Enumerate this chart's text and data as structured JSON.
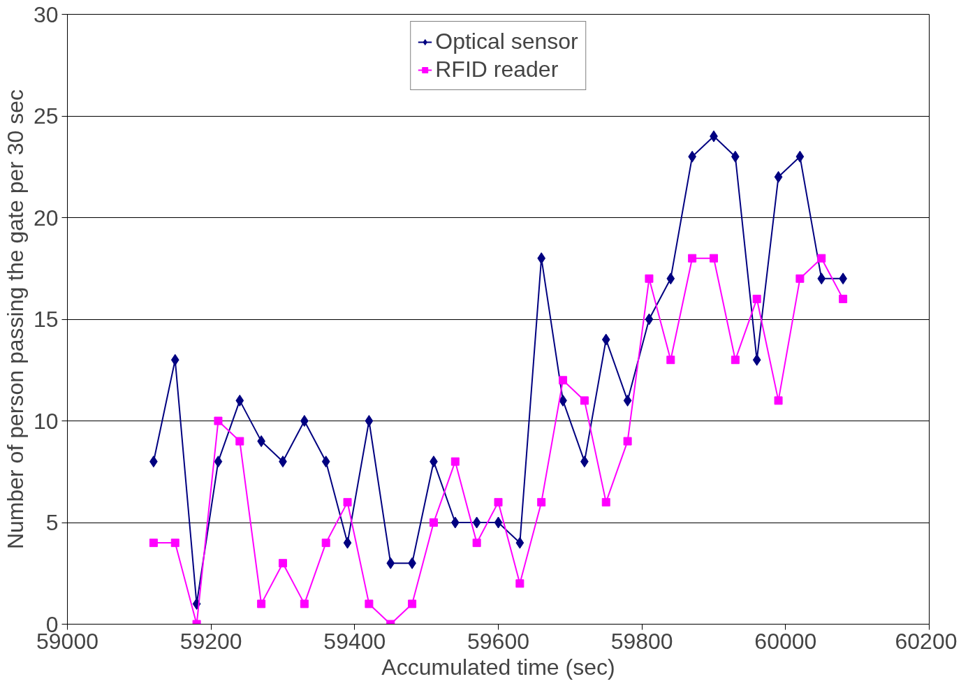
{
  "chart_data": {
    "type": "line",
    "xlabel": "Accumulated time (sec)",
    "ylabel": "Number of person passing the gate per 30 sec",
    "x": [
      59120,
      59150,
      59180,
      59210,
      59240,
      59270,
      59300,
      59330,
      59360,
      59390,
      59420,
      59450,
      59480,
      59510,
      59540,
      59570,
      59600,
      59630,
      59660,
      59690,
      59720,
      59750,
      59780,
      59810,
      59840,
      59870,
      59900,
      59930,
      59960,
      59990,
      60020,
      60050,
      60080
    ],
    "series": [
      {
        "name": "Optical sensor",
        "color": "#000080",
        "marker": "diamond",
        "values": [
          8,
          13,
          1,
          8,
          11,
          9,
          8,
          10,
          8,
          4,
          10,
          3,
          3,
          8,
          5,
          5,
          5,
          4,
          18,
          11,
          8,
          14,
          11,
          15,
          17,
          23,
          24,
          23,
          13,
          22,
          23,
          17,
          17
        ]
      },
      {
        "name": "RFID reader",
        "color": "#ff00ff",
        "marker": "square",
        "values": [
          4,
          4,
          0,
          10,
          9,
          1,
          3,
          1,
          4,
          6,
          1,
          0,
          1,
          5,
          8,
          4,
          6,
          2,
          6,
          12,
          11,
          6,
          9,
          17,
          13,
          18,
          18,
          13,
          16,
          11,
          17,
          18,
          16
        ]
      }
    ],
    "xlim": [
      59000,
      60200
    ],
    "xticks": [
      59000,
      59200,
      59400,
      59600,
      59800,
      60000,
      60200
    ],
    "ylim": [
      0,
      30
    ],
    "yticks": [
      0,
      5,
      10,
      15,
      20,
      25,
      30
    ],
    "grid": "y",
    "legend": "top center",
    "line_style": "solid"
  }
}
